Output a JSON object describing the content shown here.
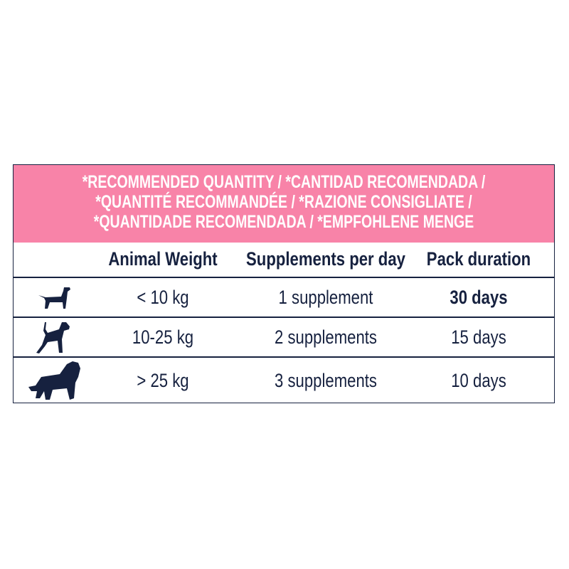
{
  "banner": {
    "lines": [
      "*RECOMMENDED QUANTITY / *CANTIDAD RECOMENDADA /",
      "*QUANTITÉ RECOMMANDÉE / *RAZIONE CONSIGLIATE /",
      "*QUANTIDADE RECOMENDADA / *EMPFOHLENE MENGE"
    ]
  },
  "headers": {
    "weight": "Animal Weight",
    "supplements": "Supplements per day",
    "duration": "Pack duration"
  },
  "rows": [
    {
      "icon": "small-dog-icon",
      "weight": "< 10 kg",
      "supplements": "1 supplement",
      "duration": "30 days"
    },
    {
      "icon": "medium-dog-icon",
      "weight": "10-25 kg",
      "supplements": "2 supplements",
      "duration": "15 days"
    },
    {
      "icon": "large-dog-icon",
      "weight": "> 25 kg",
      "supplements": "3 supplements",
      "duration": "10 days"
    }
  ],
  "colors": {
    "banner": "#f883a8",
    "text": "#16213f"
  }
}
